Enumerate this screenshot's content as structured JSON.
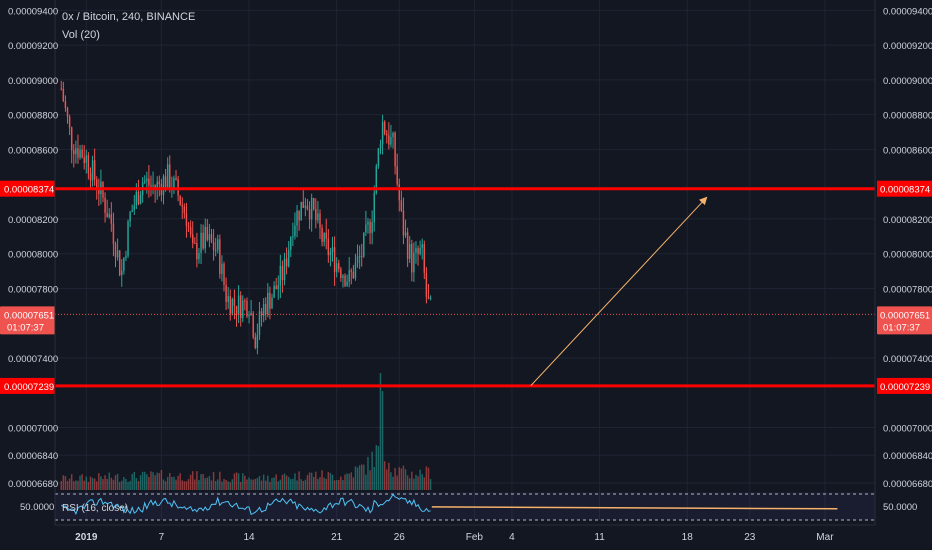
{
  "header": {
    "symbol_line": "0x / Bitcoin, 240, BINANCE",
    "vol_label": "Vol (20)"
  },
  "rsi_label": "RSI (16, close)",
  "chart_data": {
    "type": "candlestick",
    "title": "0x / Bitcoin, 240, BINANCE",
    "price_ticks": [
      "0.00009400",
      "0.00009200",
      "0.00009000",
      "0.00008800",
      "0.00008600",
      "0.00008200",
      "0.00008000",
      "0.00007800",
      "0.00007400",
      "0.00007000",
      "0.00006840",
      "0.00006680"
    ],
    "price_tick_values": [
      9.4e-05,
      9.2e-05,
      9e-05,
      8.8e-05,
      8.6e-05,
      8.2e-05,
      8e-05,
      7.8e-05,
      7.4e-05,
      7e-05,
      6.84e-05,
      6.68e-05
    ],
    "price_range": [
      6.64e-05,
      9.46e-05
    ],
    "x_ticks": [
      "2019",
      "7",
      "14",
      "21",
      "26",
      "Feb",
      "4",
      "11",
      "18",
      "23",
      "Mar"
    ],
    "x_tick_days": [
      0,
      6,
      13,
      20,
      25,
      31,
      34,
      41,
      48,
      53,
      59
    ],
    "x_range_days": [
      -2.5,
      63
    ],
    "horizontal_levels": [
      {
        "label": "0.00008374",
        "value": 8.374e-05,
        "color": "#ff0000"
      },
      {
        "label": "0.00007239",
        "value": 7.239e-05,
        "color": "#ff0000"
      }
    ],
    "last_price": {
      "label": "0.00007651",
      "value": 7.651e-05,
      "countdown": "01:07:37",
      "color": "#ef5350"
    },
    "trend_arrow": {
      "from": {
        "day": 35.5,
        "price": 7.24e-05
      },
      "to": {
        "day": 49.5,
        "price": 8.32e-05
      },
      "color": "#f6b26b"
    },
    "price_series": [
      {
        "day": -2.0,
        "close": 8.95e-05
      },
      {
        "day": -1.2,
        "close": 8.65e-05
      },
      {
        "day": 0.0,
        "close": 8.55e-05
      },
      {
        "day": 1.0,
        "close": 8.38e-05
      },
      {
        "day": 2.0,
        "close": 8.18e-05
      },
      {
        "day": 2.8,
        "close": 7.88e-05
      },
      {
        "day": 3.5,
        "close": 8.22e-05
      },
      {
        "day": 4.5,
        "close": 8.42e-05
      },
      {
        "day": 5.5,
        "close": 8.38e-05
      },
      {
        "day": 6.5,
        "close": 8.44e-05
      },
      {
        "day": 7.2,
        "close": 8.36e-05
      },
      {
        "day": 8.0,
        "close": 8.22e-05
      },
      {
        "day": 8.5,
        "close": 8e-05
      },
      {
        "day": 9.5,
        "close": 8.08e-05
      },
      {
        "day": 10.5,
        "close": 8.02e-05
      },
      {
        "day": 11.2,
        "close": 7.75e-05
      },
      {
        "day": 12.0,
        "close": 7.7e-05
      },
      {
        "day": 13.0,
        "close": 7.72e-05
      },
      {
        "day": 13.5,
        "close": 7.52e-05
      },
      {
        "day": 14.2,
        "close": 7.7e-05
      },
      {
        "day": 15.0,
        "close": 7.78e-05
      },
      {
        "day": 15.8,
        "close": 7.9e-05
      },
      {
        "day": 16.5,
        "close": 8.18e-05
      },
      {
        "day": 17.5,
        "close": 8.32e-05
      },
      {
        "day": 18.2,
        "close": 8.22e-05
      },
      {
        "day": 19.0,
        "close": 8.05e-05
      },
      {
        "day": 20.0,
        "close": 7.95e-05
      },
      {
        "day": 21.0,
        "close": 7.85e-05
      },
      {
        "day": 22.0,
        "close": 8e-05
      },
      {
        "day": 22.8,
        "close": 8.22e-05
      },
      {
        "day": 23.6,
        "close": 8.76e-05
      },
      {
        "day": 24.5,
        "close": 8.62e-05
      },
      {
        "day": 25.2,
        "close": 8.18e-05
      },
      {
        "day": 26.0,
        "close": 7.95e-05
      },
      {
        "day": 26.8,
        "close": 8.01e-05
      },
      {
        "day": 27.2,
        "close": 7.73e-05
      },
      {
        "day": 27.6,
        "close": 7.65e-05
      }
    ],
    "volume_series": [
      {
        "day": -2.0,
        "volume": 0.25
      },
      {
        "day": 2.0,
        "volume": 0.28
      },
      {
        "day": 6.0,
        "volume": 0.32
      },
      {
        "day": 10.0,
        "volume": 0.3
      },
      {
        "day": 14.0,
        "volume": 0.26
      },
      {
        "day": 18.0,
        "volume": 0.34
      },
      {
        "day": 20.5,
        "volume": 0.3
      },
      {
        "day": 22.5,
        "volume": 0.55
      },
      {
        "day": 23.6,
        "volume": 1.0
      },
      {
        "day": 24.5,
        "volume": 0.45
      },
      {
        "day": 26.0,
        "volume": 0.35
      },
      {
        "day": 27.6,
        "volume": 0.4
      }
    ],
    "rsi": {
      "label": "RSI (16, close)",
      "level_label": "50.0000",
      "level_value": 50,
      "range": [
        20,
        80
      ]
    },
    "grid": true
  }
}
